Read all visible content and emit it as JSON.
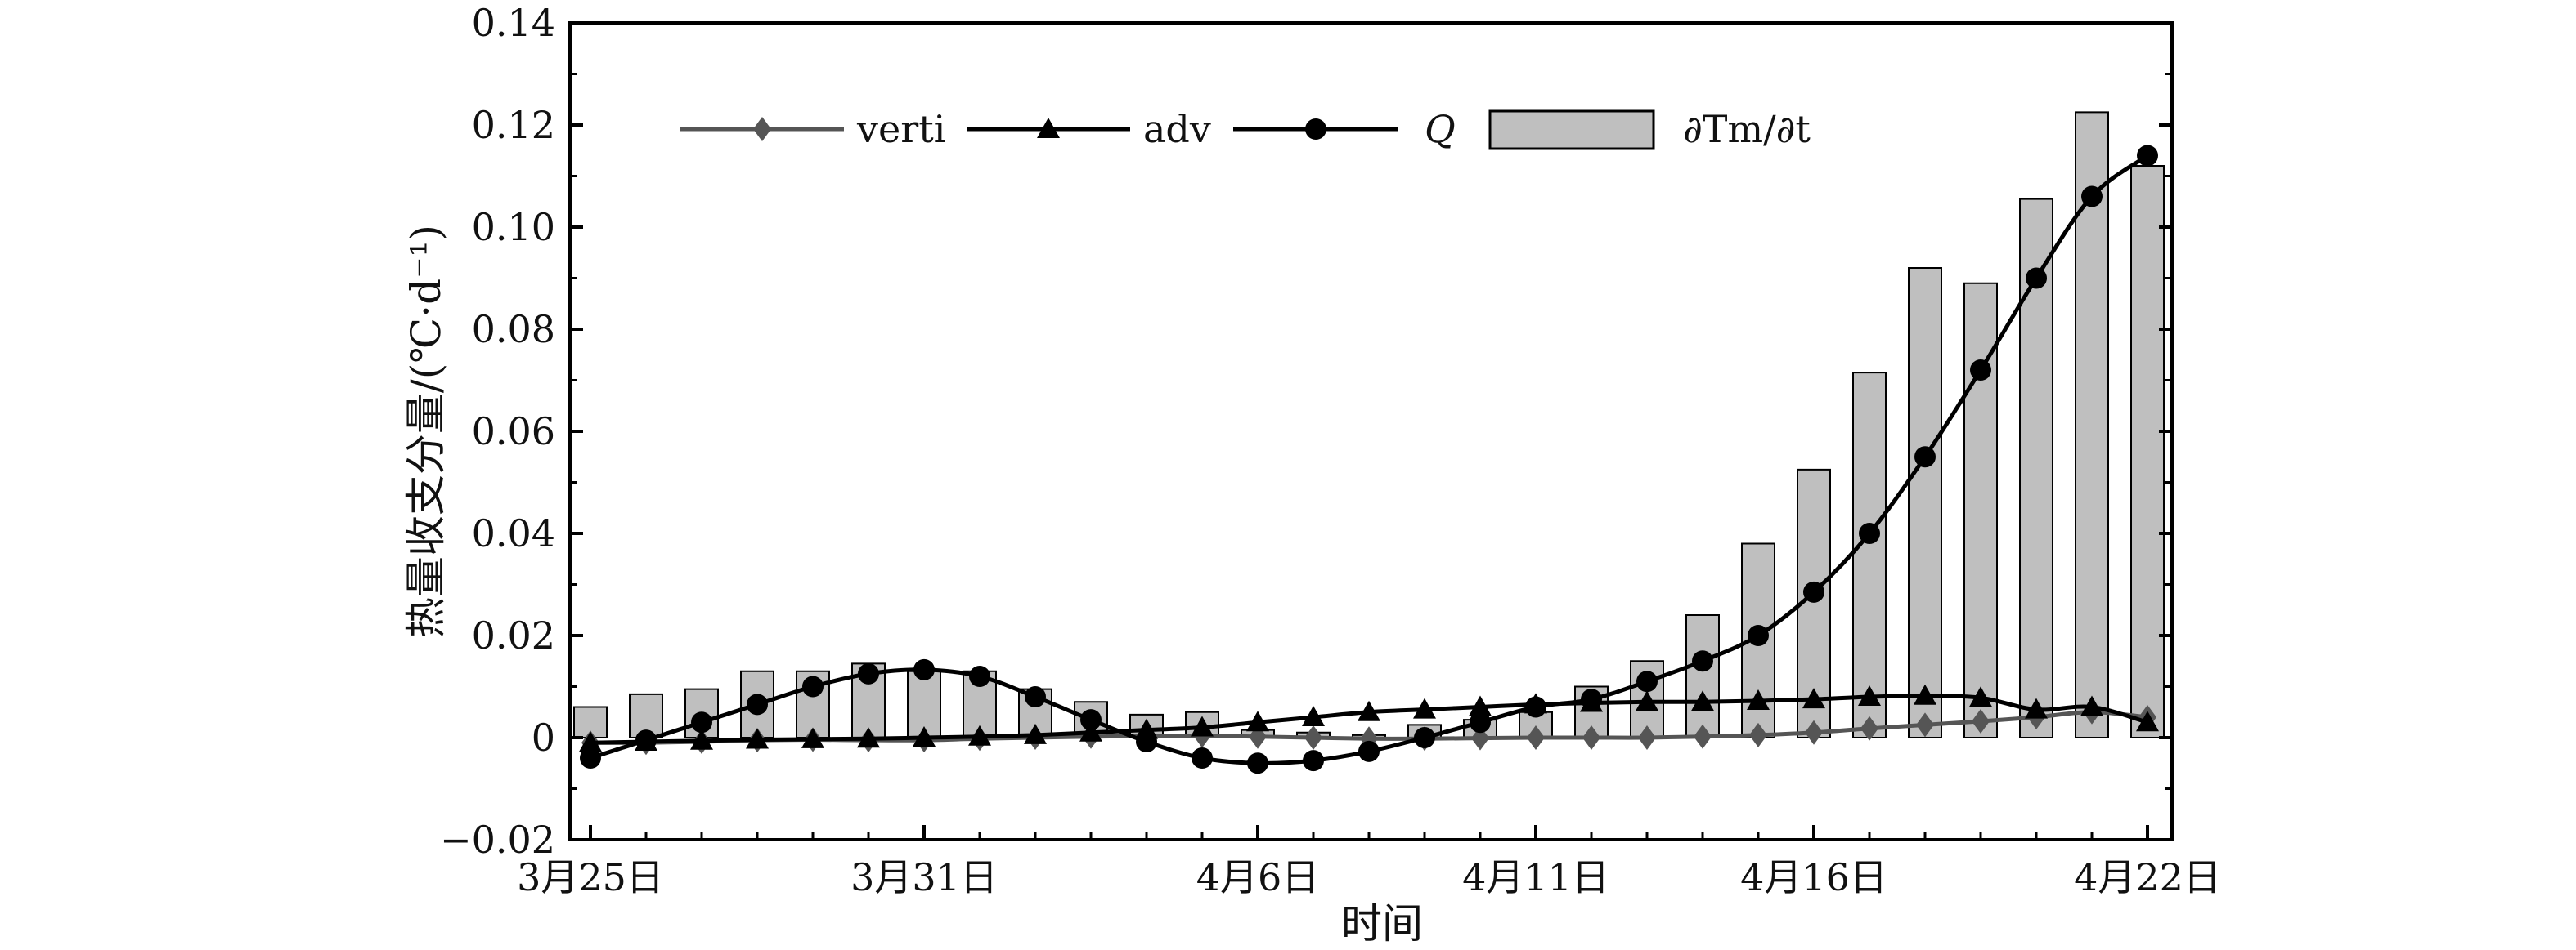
{
  "chart_data": {
    "type": "bar",
    "ylabel": "热量收支分量/(℃·d⁻¹)",
    "xlabel": "时间",
    "ylim": [
      -0.02,
      0.14
    ],
    "yticks": [
      -0.02,
      0,
      0.02,
      0.04,
      0.06,
      0.08,
      0.1,
      0.12,
      0.14
    ],
    "ytick_labels": [
      "−0.02",
      "0",
      "0.02",
      "0.04",
      "0.06",
      "0.08",
      "0.10",
      "0.12",
      "0.14"
    ],
    "x_labeled_ticks": [
      {
        "index": 0,
        "label": "3月25日"
      },
      {
        "index": 6,
        "label": "3月31日"
      },
      {
        "index": 12,
        "label": "4月6日"
      },
      {
        "index": 17,
        "label": "4月11日"
      },
      {
        "index": 22,
        "label": "4月16日"
      },
      {
        "index": 28,
        "label": "4月22日"
      }
    ],
    "x_count": 29,
    "legend_position": "top",
    "grid": false,
    "series": [
      {
        "name": "verti",
        "kind": "line",
        "marker": "diamond",
        "color": "#555555",
        "values": [
          -0.001,
          -0.001,
          -0.0008,
          -0.0005,
          -0.0004,
          -0.0005,
          -0.0005,
          -0.0002,
          0.0,
          0.0002,
          0.0003,
          0.0004,
          0.0002,
          0.0,
          -0.0002,
          -0.0002,
          -0.0001,
          0.0,
          0.0,
          0.0,
          0.0002,
          0.0005,
          0.001,
          0.0018,
          0.0025,
          0.0032,
          0.004,
          0.005,
          0.004
        ]
      },
      {
        "name": "adv",
        "kind": "line",
        "marker": "triangle",
        "color": "#000000",
        "values": [
          -0.001,
          -0.0008,
          -0.0006,
          -0.0004,
          -0.0003,
          -0.0002,
          0.0,
          0.0002,
          0.0005,
          0.001,
          0.0015,
          0.002,
          0.003,
          0.004,
          0.005,
          0.0055,
          0.006,
          0.0065,
          0.0068,
          0.007,
          0.007,
          0.0072,
          0.0075,
          0.008,
          0.0082,
          0.0078,
          0.0055,
          0.006,
          0.003
        ]
      },
      {
        "name": "Q",
        "kind": "line",
        "marker": "circle",
        "color": "#000000",
        "values": [
          -0.004,
          -0.0005,
          0.003,
          0.0065,
          0.01,
          0.0125,
          0.0133,
          0.012,
          0.008,
          0.0035,
          -0.0008,
          -0.004,
          -0.005,
          -0.0045,
          -0.0027,
          0.0,
          0.003,
          0.006,
          0.0075,
          0.011,
          0.015,
          0.02,
          0.0285,
          0.04,
          0.055,
          0.072,
          0.09,
          0.106,
          0.114
        ]
      },
      {
        "name": "∂Tm/∂t",
        "kind": "bar",
        "color": "#bfbfbf",
        "values": [
          0.006,
          0.0085,
          0.0095,
          0.013,
          0.013,
          0.0145,
          0.013,
          0.013,
          0.0095,
          0.007,
          0.0045,
          0.005,
          0.0015,
          0.001,
          0.0005,
          0.0025,
          0.0035,
          0.005,
          0.01,
          0.015,
          0.024,
          0.038,
          0.0525,
          0.0715,
          0.092,
          0.089,
          0.1055,
          0.1225,
          0.112
        ]
      }
    ],
    "legend": [
      {
        "label": "verti"
      },
      {
        "label": "adv"
      },
      {
        "label": "Q"
      },
      {
        "label": "∂Tm/∂t"
      }
    ]
  }
}
